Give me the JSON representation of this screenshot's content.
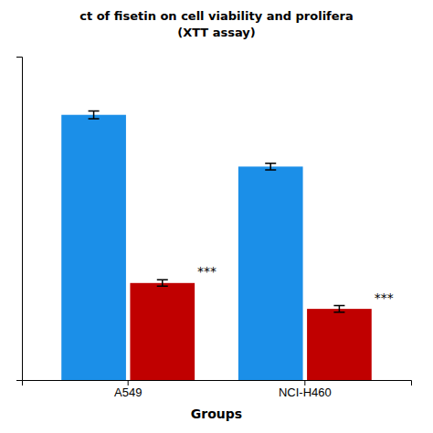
{
  "chart_data": {
    "type": "bar",
    "title": "ct of fisetin on cell viability and prolifera",
    "subtitle": "(XTT assay)",
    "x_label": "Groups",
    "categories": [
      "A549",
      "NCI-H460"
    ],
    "series": [
      {
        "color": "#1B8FE8",
        "values": [
          0.82,
          0.66
        ],
        "errors": [
          0.012,
          0.01
        ]
      },
      {
        "color": "#C00000",
        "values": [
          0.3,
          0.22
        ],
        "errors": [
          0.01,
          0.01
        ],
        "annotations": [
          "***",
          "***"
        ]
      }
    ],
    "ylim": [
      0,
      1.0
    ],
    "grid": false,
    "tick_labels": "x"
  }
}
